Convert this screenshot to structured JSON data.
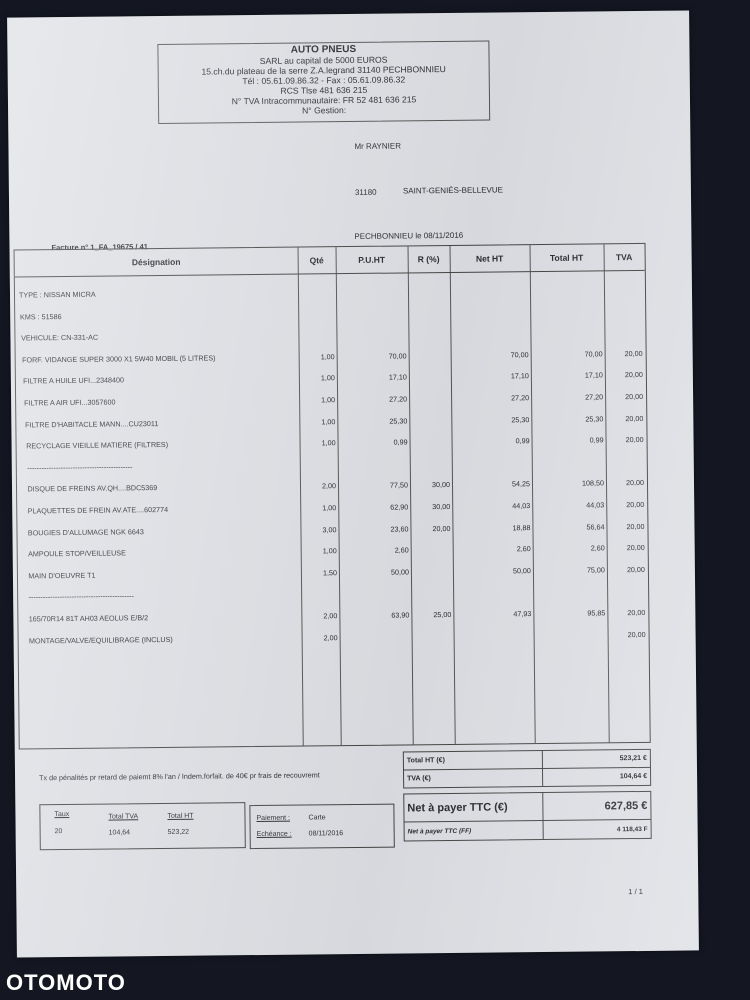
{
  "company": {
    "name": "AUTO PNEUS",
    "lines": [
      "SARL au capital de 5000 EUROS",
      "15.ch.du plateau de la serre Z.A.legrand 31140 PECHBONNIEU",
      "Tél : 05.61.09.86.32 - Fax : 05.61.09.86.32",
      "RCS Tlse 481 636 215",
      "N° TVA Intracommunautaire: FR 52 481 636 215",
      "N° Gestion:"
    ]
  },
  "client": {
    "name": "Mr RAYNIER",
    "postcode": "31180",
    "city": "SAINT-GENIÉS-BELLEVUE"
  },
  "place_date": "PECHBONNIEU le 08/11/2016",
  "invoice_number": "Facture n° 1_FA_19675  /  41",
  "table": {
    "headers": [
      "Désignation",
      "Qté",
      "P.U.HT",
      "R (%)",
      "Net HT",
      "Total HT",
      "TVA"
    ],
    "rows": [
      [
        "TYPE : NISSAN    MICRA",
        "",
        "",
        "",
        "",
        "",
        ""
      ],
      [
        "KMS : 51586",
        "",
        "",
        "",
        "",
        "",
        ""
      ],
      [
        "VEHICULE: CN-331-AC",
        "",
        "",
        "",
        "",
        "",
        ""
      ],
      [
        "FORF. VIDANGE SUPER 3000 X1 5W40 MOBIL (5 LITRES)",
        "1,00",
        "70,00",
        "",
        "70,00",
        "70,00",
        "20,00"
      ],
      [
        "FILTRE A HUILE UFI...2348400",
        "1,00",
        "17,10",
        "",
        "17,10",
        "17,10",
        "20,00"
      ],
      [
        "FILTRE A  AIR UFI...3057600",
        "1,00",
        "27,20",
        "",
        "27,20",
        "27,20",
        "20,00"
      ],
      [
        "FILTRE D'HABITACLE MANN....CU23011",
        "1,00",
        "25,30",
        "",
        "25,30",
        "25,30",
        "20,00"
      ],
      [
        "RECYCLAGE VIEILLE MATIERE (FILTRES)",
        "1,00",
        "0,99",
        "",
        "0,99",
        "0,99",
        "20,00"
      ],
      [
        "--------------------------------------------",
        "",
        "",
        "",
        "",
        "",
        ""
      ],
      [
        "DISQUE DE FREINS AV.QH....BDC5369",
        "2,00",
        "77,50",
        "30,00",
        "54,25",
        "108,50",
        "20,00"
      ],
      [
        "PLAQUETTES DE FREIN AV.ATE....602774",
        "1,00",
        "62,90",
        "30,00",
        "44,03",
        "44,03",
        "20,00"
      ],
      [
        "BOUGIES D'ALLUMAGE NGK 6643",
        "3,00",
        "23,60",
        "20,00",
        "18,88",
        "56,64",
        "20,00"
      ],
      [
        "AMPOULE STOP/VEILLEUSE",
        "1,00",
        "2,60",
        "",
        "2,60",
        "2,60",
        "20,00"
      ],
      [
        "MAIN D'OEUVRE T1",
        "1,50",
        "50,00",
        "",
        "50,00",
        "75,00",
        "20,00"
      ],
      [
        "--------------------------------------------",
        "",
        "",
        "",
        "",
        "",
        ""
      ],
      [
        "165/70R14 81T AH03  AEOLUS E/B/2",
        "2,00",
        "63,90",
        "25,00",
        "47,93",
        "95,85",
        "20,00"
      ],
      [
        "MONTAGE/VALVE/EQUILIBRAGE          (INCLUS)",
        "2,00",
        "",
        "",
        "",
        "",
        "20,00"
      ]
    ]
  },
  "penalty_note": "Tx de pénalités pr retard de paiemt 8% l'an / Indem.forfait. de 40€ pr frais de recouvremt",
  "vat_summary": {
    "headers": [
      "Taux",
      "Total TVA",
      "Total HT"
    ],
    "values": [
      "20",
      "104,64",
      "523,22"
    ]
  },
  "payment": {
    "label": "Paiement :",
    "value": "Carte",
    "due_label": "Echéance :",
    "due_value": "08/11/2016"
  },
  "totals": {
    "total_ht_label": "Total HT (€)",
    "total_ht": "523,21 €",
    "tva_label": "TVA (€)",
    "tva": "104,64 €",
    "net_label": "Net à payer TTC (€)",
    "net": "627,85 €",
    "net_ff_label": "Net à payer TTC (FF)",
    "net_ff": "4 118,43 F"
  },
  "page": "1 / 1",
  "watermark": "OTOMOTO",
  "colors": {
    "background": "#141722",
    "paper": "#dfe1e6"
  }
}
